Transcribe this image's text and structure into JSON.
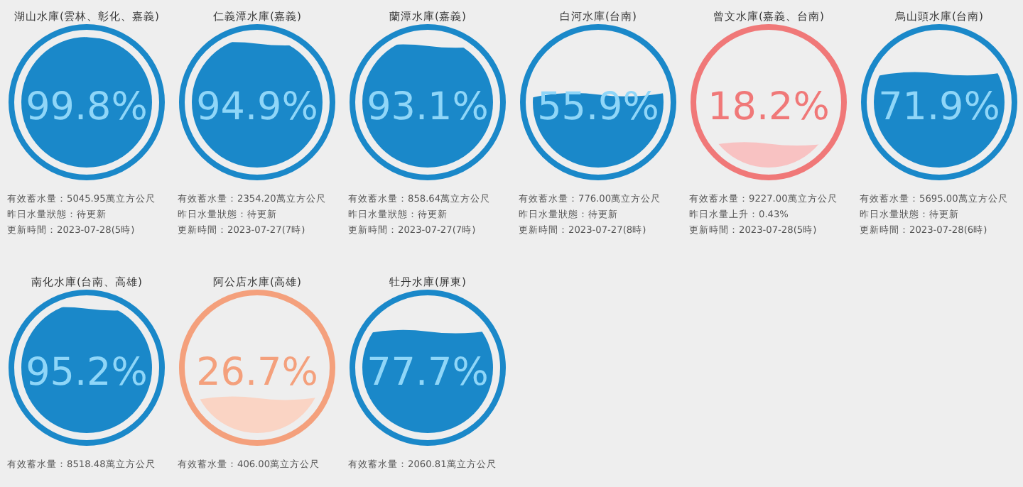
{
  "chart_data": [
    {
      "type": "other",
      "title": "湖山水庫(雲林、彰化、嘉義)",
      "values": [
        99.8
      ],
      "value_labels": [
        "99.8%"
      ],
      "color": "#1a88c9",
      "annotations": [
        "有效蓄水量：5045.95萬立方公尺",
        "昨日水量狀態：待更新",
        "更新時間：2023-07-28(5時)"
      ]
    },
    {
      "type": "other",
      "title": "仁義潭水庫(嘉義)",
      "values": [
        94.9
      ],
      "value_labels": [
        "94.9%"
      ],
      "color": "#1a88c9",
      "annotations": [
        "有效蓄水量：2354.20萬立方公尺",
        "昨日水量狀態：待更新",
        "更新時間：2023-07-27(7時)"
      ]
    },
    {
      "type": "other",
      "title": "蘭潭水庫(嘉義)",
      "values": [
        93.1
      ],
      "value_labels": [
        "93.1%"
      ],
      "color": "#1a88c9",
      "annotations": [
        "有效蓄水量：858.64萬立方公尺",
        "昨日水量狀態：待更新",
        "更新時間：2023-07-27(7時)"
      ]
    },
    {
      "type": "other",
      "title": "白河水庫(台南)",
      "values": [
        55.9
      ],
      "value_labels": [
        "55.9%"
      ],
      "color": "#1a88c9",
      "annotations": [
        "有效蓄水量：776.00萬立方公尺",
        "昨日水量狀態：待更新",
        "更新時間：2023-07-27(8時)"
      ]
    },
    {
      "type": "other",
      "title": "曾文水庫(嘉義、台南)",
      "values": [
        18.2
      ],
      "value_labels": [
        "18.2%"
      ],
      "color": "#f07878",
      "annotations": [
        "有效蓄水量：9227.00萬立方公尺",
        "昨日水量上升：0.43%",
        "更新時間：2023-07-28(5時)"
      ]
    },
    {
      "type": "other",
      "title": "烏山頭水庫(台南)",
      "values": [
        71.9
      ],
      "value_labels": [
        "71.9%"
      ],
      "color": "#1a88c9",
      "annotations": [
        "有效蓄水量：5695.00萬立方公尺",
        "昨日水量狀態：待更新",
        "更新時間：2023-07-28(6時)"
      ]
    },
    {
      "type": "other",
      "title": "南化水庫(台南、高雄)",
      "values": [
        95.2
      ],
      "value_labels": [
        "95.2%"
      ],
      "color": "#1a88c9",
      "annotations": [
        "有效蓄水量：8518.48萬立方公尺"
      ]
    },
    {
      "type": "other",
      "title": "阿公店水庫(高雄)",
      "values": [
        26.7
      ],
      "value_labels": [
        "26.7%"
      ],
      "color": "#f4a07c",
      "annotations": [
        "有效蓄水量：406.00萬立方公尺"
      ]
    },
    {
      "type": "other",
      "title": "牡丹水庫(屏東)",
      "values": [
        77.7
      ],
      "value_labels": [
        "77.7%"
      ],
      "color": "#1a88c9",
      "annotations": [
        "有效蓄水量：2060.81萬立方公尺"
      ]
    }
  ]
}
